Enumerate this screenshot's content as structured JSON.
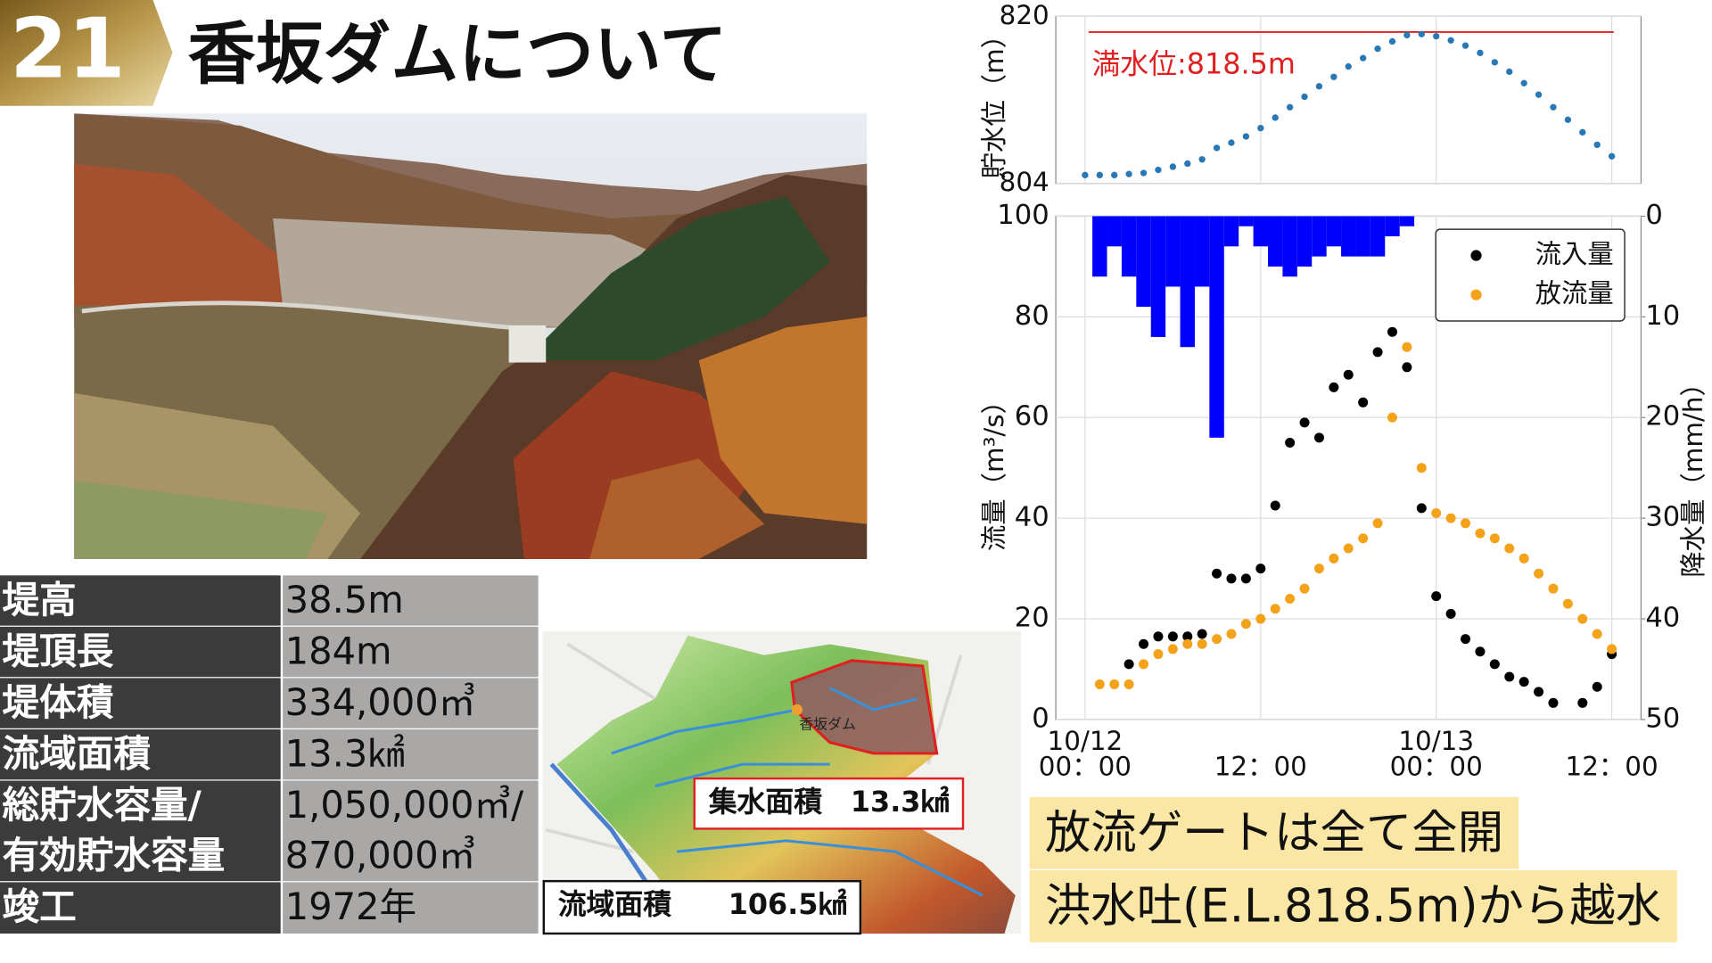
{
  "header": {
    "number": "21",
    "title": "香坂ダムについて"
  },
  "table": {
    "rows": [
      [
        "堤高",
        "38.5m"
      ],
      [
        "堤頂長",
        "184m"
      ],
      [
        "堤体積",
        "334,000㎥"
      ],
      [
        "流域面積",
        "13.3㎢"
      ],
      [
        "総貯水容量/\n有効貯水容量",
        "1,050,000㎥/\n870,000㎥"
      ],
      [
        "竣工",
        "1972年"
      ]
    ]
  },
  "map": {
    "dam_label": "香坂ダム",
    "catchment_label": "集水面積　13.3㎢",
    "basin_label": "流域面積　　106.5㎢"
  },
  "notes": [
    "放流ゲートは全て全開",
    "洪水吐(E.L.818.5m)から越水"
  ],
  "chart_data": [
    {
      "type": "scatter",
      "ylabel": "貯水位（m）",
      "color": "#2878b5",
      "x": [
        0,
        1,
        2,
        3,
        4,
        5,
        6,
        7,
        8,
        9,
        10,
        11,
        12,
        13,
        14,
        15,
        16,
        17,
        18,
        19,
        20,
        21,
        22,
        23,
        24,
        25,
        26,
        27,
        28,
        29,
        30,
        31,
        32,
        33,
        34,
        35,
        36
      ],
      "values": [
        804.8,
        804.8,
        804.8,
        804.9,
        805.0,
        805.3,
        805.6,
        805.9,
        806.3,
        807.4,
        807.9,
        808.5,
        809.3,
        810.3,
        811.3,
        812.3,
        813.3,
        814.2,
        815.2,
        816.0,
        816.9,
        817.6,
        818.2,
        818.3,
        818.1,
        817.7,
        817.2,
        816.5,
        815.6,
        814.7,
        813.6,
        812.5,
        811.3,
        810.1,
        808.9,
        807.7,
        806.6
      ],
      "hline": {
        "value": 818.5,
        "label": "満水位:818.5m",
        "color": "#e02020"
      },
      "xlim": [
        -2,
        38
      ],
      "ylim": [
        804,
        820
      ],
      "yticks": [
        804,
        820
      ],
      "grid": true
    },
    {
      "type": "combo",
      "ylabel": "流量（m³/s）",
      "y2label": "降水量（mm/h）",
      "series": [
        {
          "kind": "bar",
          "axis": "y2",
          "color": "#0000ff",
          "x": [
            1,
            2,
            3,
            4,
            5,
            6,
            7,
            8,
            9,
            10,
            11,
            12,
            13,
            14,
            15,
            16,
            17,
            18,
            19,
            20,
            21,
            22
          ],
          "values": [
            6,
            3,
            6,
            9,
            12,
            7,
            13,
            7,
            22,
            3,
            1,
            3,
            5,
            6,
            5,
            4,
            3,
            4,
            4,
            4,
            2,
            1
          ]
        },
        {
          "kind": "scatter",
          "name": "流入量",
          "color": "#000000",
          "x": [
            3,
            4,
            5,
            6,
            7,
            8,
            9,
            10,
            11,
            12,
            13,
            14,
            15,
            16,
            17,
            18,
            19,
            20,
            21,
            22,
            23,
            24,
            25,
            26,
            27,
            28,
            29,
            30,
            31,
            32,
            34,
            35,
            36
          ],
          "values": [
            11,
            15,
            16.5,
            16.5,
            16.5,
            17,
            29,
            28,
            28,
            30,
            42.5,
            55,
            59,
            56,
            66,
            68.5,
            63,
            73,
            77,
            70,
            42,
            24.5,
            21,
            16,
            13.5,
            11,
            8.5,
            7.5,
            5.5,
            3.3,
            3.3,
            6.5,
            13
          ]
        },
        {
          "kind": "scatter",
          "name": "放流量",
          "color": "#f5a21b",
          "x": [
            1,
            2,
            3,
            4,
            5,
            6,
            7,
            8,
            9,
            10,
            11,
            12,
            13,
            14,
            15,
            16,
            17,
            18,
            19,
            20,
            21,
            22,
            23,
            24,
            25,
            26,
            27,
            28,
            29,
            30,
            31,
            32,
            33,
            34,
            35,
            36
          ],
          "values": [
            7,
            7,
            7,
            11,
            13,
            14,
            15,
            15,
            16,
            17,
            19,
            20,
            22,
            24,
            26,
            30,
            32,
            34,
            36,
            39,
            60,
            74,
            50,
            41,
            40,
            39,
            37,
            36,
            34,
            32,
            29,
            26,
            23,
            20,
            17,
            14
          ]
        }
      ],
      "xlim": [
        -2,
        38
      ],
      "ylim": [
        0,
        100
      ],
      "yticks": [
        0,
        20,
        40,
        60,
        80,
        100
      ],
      "y2lim": [
        50,
        0
      ],
      "y2ticks": [
        0,
        10,
        20,
        30,
        40,
        50
      ],
      "xticks": [
        {
          "value": 0,
          "label": "10/12\n00：00"
        },
        {
          "value": 12,
          "label": "12：00"
        },
        {
          "value": 24,
          "label": "10/13\n00：00"
        },
        {
          "value": 36,
          "label": "12：00"
        }
      ],
      "grid": true,
      "legend": "upper right"
    }
  ]
}
